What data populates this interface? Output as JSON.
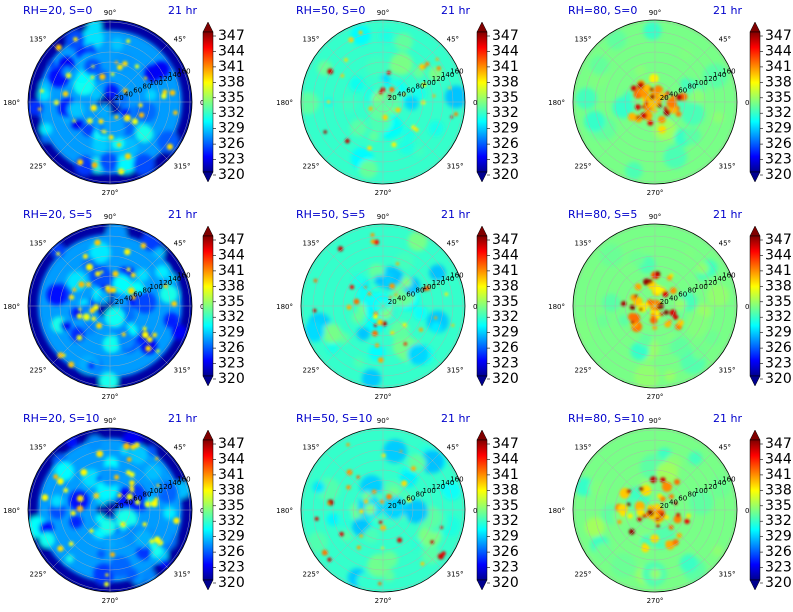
{
  "chart_data": {
    "type": "polar-contour",
    "colormap": "jet",
    "colorbar": {
      "ticks": [
        "347",
        "344",
        "341",
        "338",
        "335",
        "332",
        "329",
        "326",
        "323",
        "320"
      ],
      "range": [
        320,
        347
      ]
    },
    "angle_labels": [
      "90°",
      "45°",
      "0°",
      "315°",
      "270°",
      "225°",
      "180°",
      "135°"
    ],
    "radial_labels": [
      "20",
      "40",
      "60",
      "80",
      "100",
      "120",
      "140",
      "160"
    ],
    "panels": [
      {
        "title": "RH=20, S=0",
        "time": "21 hr",
        "rh": 20,
        "s": 0
      },
      {
        "title": "RH=50, S=0",
        "time": "21 hr",
        "rh": 50,
        "s": 0
      },
      {
        "title": "RH=80, S=0",
        "time": "21 hr",
        "rh": 80,
        "s": 0
      },
      {
        "title": "RH=20, S=5",
        "time": "21 hr",
        "rh": 20,
        "s": 5
      },
      {
        "title": "RH=50, S=5",
        "time": "21 hr",
        "rh": 50,
        "s": 5
      },
      {
        "title": "RH=80, S=5",
        "time": "21 hr",
        "rh": 80,
        "s": 5
      },
      {
        "title": "RH=20, S=10",
        "time": "21 hr",
        "rh": 20,
        "s": 10
      },
      {
        "title": "RH=50, S=10",
        "time": "21 hr",
        "rh": 50,
        "s": 10
      },
      {
        "title": "RH=80, S=10",
        "time": "21 hr",
        "rh": 80,
        "s": 10
      }
    ]
  }
}
